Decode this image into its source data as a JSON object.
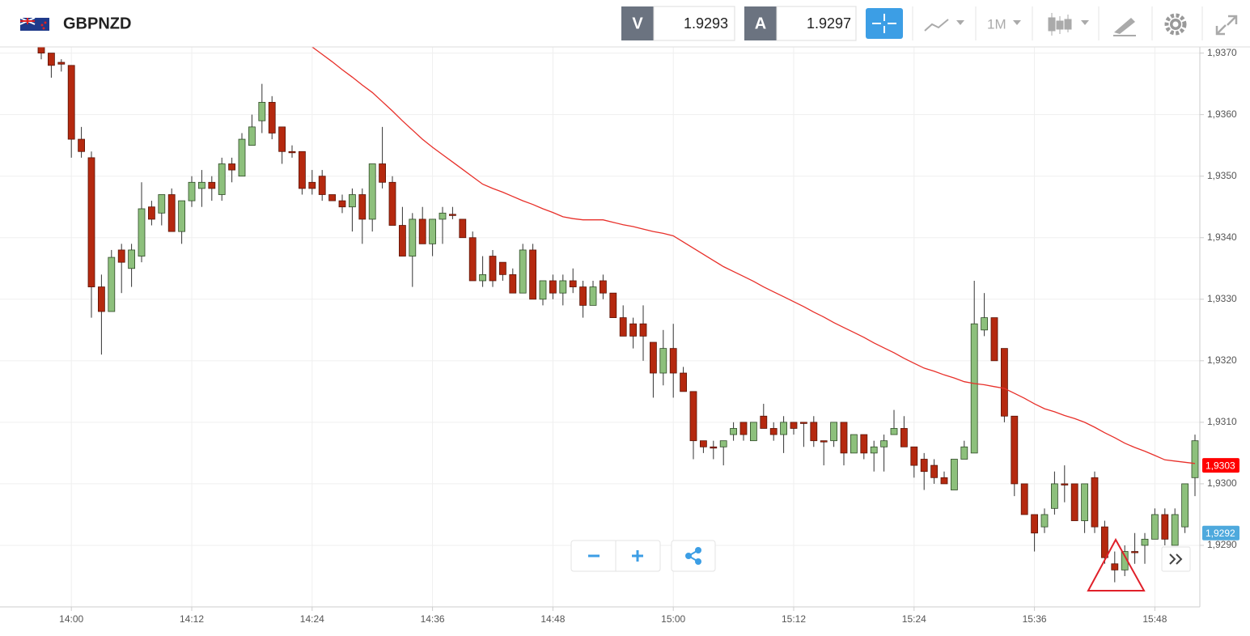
{
  "chart_data": {
    "type": "candlestick",
    "title": "GBPNZD",
    "bid_label": "V",
    "bid": 1.9293,
    "ask_label": "A",
    "ask": 1.9297,
    "timeframe": "1M",
    "categories": [
      null,
      null,
      null,
      "14:00",
      null,
      null,
      null,
      null,
      null,
      null,
      null,
      null,
      null,
      null,
      null,
      "14:12",
      null,
      null,
      null,
      null,
      null,
      null,
      null,
      null,
      null,
      null,
      null,
      "14:24",
      null,
      null,
      null,
      null,
      null,
      null,
      null,
      null,
      null,
      null,
      null,
      "14:36",
      null,
      null,
      null,
      null,
      null,
      null,
      null,
      null,
      null,
      null,
      null,
      "14:48",
      null,
      null,
      null,
      null,
      null,
      null,
      null,
      null,
      null,
      null,
      null,
      "15:00",
      null,
      null,
      null,
      null,
      null,
      null,
      null,
      null,
      null,
      null,
      null,
      "15:12",
      null,
      null,
      null,
      null,
      null,
      null,
      null,
      null,
      null,
      null,
      null,
      "15:24",
      null,
      null,
      null,
      null,
      null,
      null,
      null,
      null,
      null,
      null,
      null,
      "15:36",
      null,
      null,
      null,
      null,
      null,
      null,
      null,
      null,
      null,
      null,
      null,
      "15:48",
      null,
      null,
      null,
      null
    ],
    "open": [
      1.9371,
      1.937,
      1.93685,
      1.9368,
      1.9356,
      1.9353,
      1.9332,
      1.9328,
      1.9338,
      1.9335,
      1.9337,
      1.9345,
      1.9344,
      1.9347,
      1.9341,
      1.9346,
      1.9348,
      1.9349,
      1.9347,
      1.9352,
      1.935,
      1.9355,
      1.9359,
      1.9362,
      1.9358,
      1.9354,
      1.9354,
      1.9349,
      1.935,
      1.9347,
      1.9346,
      1.9345,
      1.9347,
      1.9343,
      1.9352,
      1.9349,
      1.9342,
      1.9337,
      1.9343,
      1.9339,
      1.9343,
      1.93438,
      1.9343,
      1.934,
      1.9333,
      1.9337,
      1.9336,
      1.9334,
      1.9331,
      1.9338,
      1.933,
      1.9333,
      1.9331,
      1.9333,
      1.9332,
      1.9329,
      1.9333,
      1.9331,
      1.9327,
      1.9326,
      1.9326,
      1.9323,
      1.9318,
      1.9322,
      1.9318,
      1.9315,
      1.9307,
      1.9306,
      1.9306,
      1.9308,
      1.931,
      1.9307,
      1.9311,
      1.9309,
      1.9308,
      1.931,
      1.931,
      1.931,
      1.9307,
      1.9307,
      1.931,
      1.9305,
      1.9308,
      1.9305,
      1.9306,
      1.9308,
      1.9309,
      1.9306,
      1.9304,
      1.9303,
      1.9301,
      1.9299,
      1.9304,
      1.9305,
      1.9325,
      1.9327,
      1.9322,
      1.9311,
      1.93,
      1.9295,
      1.9293,
      1.9296,
      1.93,
      1.93,
      1.9294,
      1.9301,
      1.9293,
      1.9287,
      1.9286,
      1.9289,
      1.929,
      1.9291,
      1.9295,
      1.929,
      1.9293,
      1.9301
    ],
    "high": [
      1.9372,
      1.937,
      1.9369,
      1.9368,
      1.9358,
      1.9354,
      1.9334,
      1.9338,
      1.9339,
      1.9339,
      1.9349,
      1.9346,
      1.9347,
      1.9348,
      1.9346,
      1.935,
      1.9351,
      1.935,
      1.9353,
      1.9353,
      1.9357,
      1.936,
      1.9365,
      1.9363,
      1.9358,
      1.9355,
      1.9354,
      1.9351,
      1.9351,
      1.9347,
      1.9347,
      1.9348,
      1.9348,
      1.9352,
      1.9358,
      1.935,
      1.9345,
      1.9344,
      1.9345,
      1.9343,
      1.9345,
      1.9345,
      1.9343,
      1.9341,
      1.9337,
      1.9338,
      1.9336,
      1.9335,
      1.9339,
      1.9339,
      1.9333,
      1.9334,
      1.9334,
      1.9335,
      1.9333,
      1.9333,
      1.9334,
      1.9331,
      1.9329,
      1.9327,
      1.9329,
      1.9323,
      1.9325,
      1.9326,
      1.9319,
      1.9315,
      1.9307,
      1.9307,
      1.9307,
      1.931,
      1.931,
      1.931,
      1.9313,
      1.931,
      1.9311,
      1.931,
      1.931,
      1.9311,
      1.9307,
      1.931,
      1.931,
      1.9308,
      1.9308,
      1.9307,
      1.9308,
      1.9312,
      1.9311,
      1.9306,
      1.9305,
      1.9304,
      1.9302,
      1.9304,
      1.9307,
      1.9333,
      1.9331,
      1.9327,
      1.9322,
      1.9311,
      1.93,
      1.9295,
      1.9296,
      1.9302,
      1.9303,
      1.93,
      1.93,
      1.9302,
      1.9294,
      1.9289,
      1.929,
      1.9292,
      1.9292,
      1.9296,
      1.9296,
      1.9296,
      1.93,
      1.9308
    ],
    "low": [
      1.9369,
      1.9366,
      1.9367,
      1.9353,
      1.9353,
      1.9327,
      1.9321,
      1.9328,
      1.9331,
      1.9332,
      1.9336,
      1.9342,
      1.9342,
      1.9341,
      1.9339,
      1.9345,
      1.9345,
      1.9346,
      1.9346,
      1.9349,
      1.935,
      1.9355,
      1.9357,
      1.9356,
      1.9352,
      1.9353,
      1.9347,
      1.9347,
      1.9346,
      1.9346,
      1.9344,
      1.9341,
      1.9339,
      1.9341,
      1.9348,
      1.9342,
      1.9337,
      1.9332,
      1.9339,
      1.9337,
      1.9339,
      1.9343,
      1.934,
      1.9333,
      1.9332,
      1.9332,
      1.9333,
      1.9331,
      1.9331,
      1.933,
      1.9329,
      1.933,
      1.9329,
      1.9331,
      1.9327,
      1.9329,
      1.933,
      1.9327,
      1.9324,
      1.9322,
      1.932,
      1.9314,
      1.9316,
      1.9314,
      1.9315,
      1.9304,
      1.9305,
      1.9304,
      1.9303,
      1.9307,
      1.9307,
      1.9307,
      1.9309,
      1.9307,
      1.9305,
      1.9308,
      1.9306,
      1.9306,
      1.9303,
      1.9306,
      1.9303,
      1.9305,
      1.9304,
      1.9302,
      1.9302,
      1.9308,
      1.9306,
      1.9301,
      1.9299,
      1.93,
      1.93,
      1.9299,
      1.9304,
      1.9305,
      1.9324,
      1.932,
      1.931,
      1.9298,
      1.9295,
      1.9289,
      1.9292,
      1.9295,
      1.9297,
      1.9294,
      1.9292,
      1.9292,
      1.9287,
      1.9284,
      1.9285,
      1.9287,
      1.9287,
      1.9291,
      1.929,
      1.929,
      1.9292,
      1.9298
    ],
    "close": [
      1.937,
      1.9368,
      1.93682,
      1.9356,
      1.9354,
      1.9332,
      1.9328,
      1.93368,
      1.9336,
      1.9338,
      1.93447,
      1.9343,
      1.9347,
      1.9341,
      1.9346,
      1.9349,
      1.9349,
      1.9348,
      1.9352,
      1.9351,
      1.9356,
      1.9358,
      1.9362,
      1.9357,
      1.9354,
      1.93538,
      1.9348,
      1.9348,
      1.9347,
      1.9346,
      1.9345,
      1.9347,
      1.9343,
      1.9352,
      1.9349,
      1.9342,
      1.9337,
      1.9343,
      1.9339,
      1.9343,
      1.9344,
      1.93436,
      1.934,
      1.9333,
      1.9334,
      1.9333,
      1.9334,
      1.9331,
      1.9338,
      1.933,
      1.9333,
      1.9331,
      1.9333,
      1.9332,
      1.9329,
      1.9332,
      1.9331,
      1.9327,
      1.9324,
      1.9324,
      1.9324,
      1.9318,
      1.9322,
      1.9318,
      1.9315,
      1.9307,
      1.9306,
      1.93058,
      1.9307,
      1.9309,
      1.9308,
      1.931,
      1.9309,
      1.9308,
      1.931,
      1.9309,
      1.93098,
      1.9307,
      1.93068,
      1.931,
      1.9305,
      1.9308,
      1.9305,
      1.9306,
      1.9307,
      1.9309,
      1.9306,
      1.9303,
      1.9302,
      1.9301,
      1.93,
      1.9304,
      1.9306,
      1.9326,
      1.9327,
      1.932,
      1.9311,
      1.93,
      1.9295,
      1.9292,
      1.9295,
      1.93,
      1.92998,
      1.9294,
      1.93,
      1.9293,
      1.9288,
      1.9286,
      1.9289,
      1.92888,
      1.9291,
      1.9295,
      1.9291,
      1.9295,
      1.93,
      1.9307
    ],
    "up_color": "#8dc07c",
    "down_color": "#b5290f",
    "moving_average": {
      "color": "#e8302a",
      "values": [
        null,
        null,
        null,
        null,
        null,
        null,
        null,
        null,
        null,
        null,
        null,
        null,
        null,
        null,
        null,
        null,
        null,
        null,
        null,
        null,
        null,
        null,
        null,
        null,
        null,
        null,
        null,
        1.9371,
        1.93698,
        1.93686,
        1.93673,
        1.93661,
        1.93648,
        1.93636,
        1.93621,
        1.93606,
        1.9359,
        1.93575,
        1.9356,
        1.93547,
        1.93535,
        1.93523,
        1.93511,
        1.93499,
        1.93487,
        1.9348,
        1.93474,
        1.93467,
        1.9346,
        1.93454,
        1.93447,
        1.93441,
        1.93434,
        1.93431,
        1.93429,
        1.93429,
        1.93429,
        1.93425,
        1.93421,
        1.93418,
        1.93414,
        1.9341,
        1.93407,
        1.93403,
        1.93393,
        1.93383,
        1.93373,
        1.93363,
        1.93353,
        1.93345,
        1.93337,
        1.93329,
        1.9332,
        1.93312,
        1.93304,
        1.93296,
        1.93288,
        1.93279,
        1.93271,
        1.93262,
        1.93254,
        1.93246,
        1.93238,
        1.93229,
        1.93221,
        1.93213,
        1.93204,
        1.93196,
        1.93188,
        1.93183,
        1.93177,
        1.93172,
        1.93166,
        1.93163,
        1.93161,
        1.93158,
        1.93155,
        1.93147,
        1.93139,
        1.9313,
        1.93122,
        1.93117,
        1.93111,
        1.93106,
        1.931,
        1.93092,
        1.93083,
        1.93075,
        1.93066,
        1.93059,
        1.93053,
        1.93046,
        1.93039,
        1.93037,
        1.93035,
        1.93033
      ]
    },
    "price_markers": [
      {
        "value": 1.9303,
        "label": "1,9303",
        "color": "#ff0000"
      },
      {
        "value": 1.9292,
        "label": "1,9292",
        "color": "#4ea9dd"
      }
    ],
    "ylim": [
      1.928,
      1.9371
    ],
    "yticks": [
      {
        "value": 1.929,
        "label": "1,9290"
      },
      {
        "value": 1.93,
        "label": "1,9300"
      },
      {
        "value": 1.931,
        "label": "1,9310"
      },
      {
        "value": 1.932,
        "label": "1,9320"
      },
      {
        "value": 1.933,
        "label": "1,9330"
      },
      {
        "value": 1.934,
        "label": "1,9340"
      },
      {
        "value": 1.935,
        "label": "1,9350"
      },
      {
        "value": 1.936,
        "label": "1,9360"
      },
      {
        "value": 1.937,
        "label": "1,9370"
      }
    ],
    "grid": true
  }
}
